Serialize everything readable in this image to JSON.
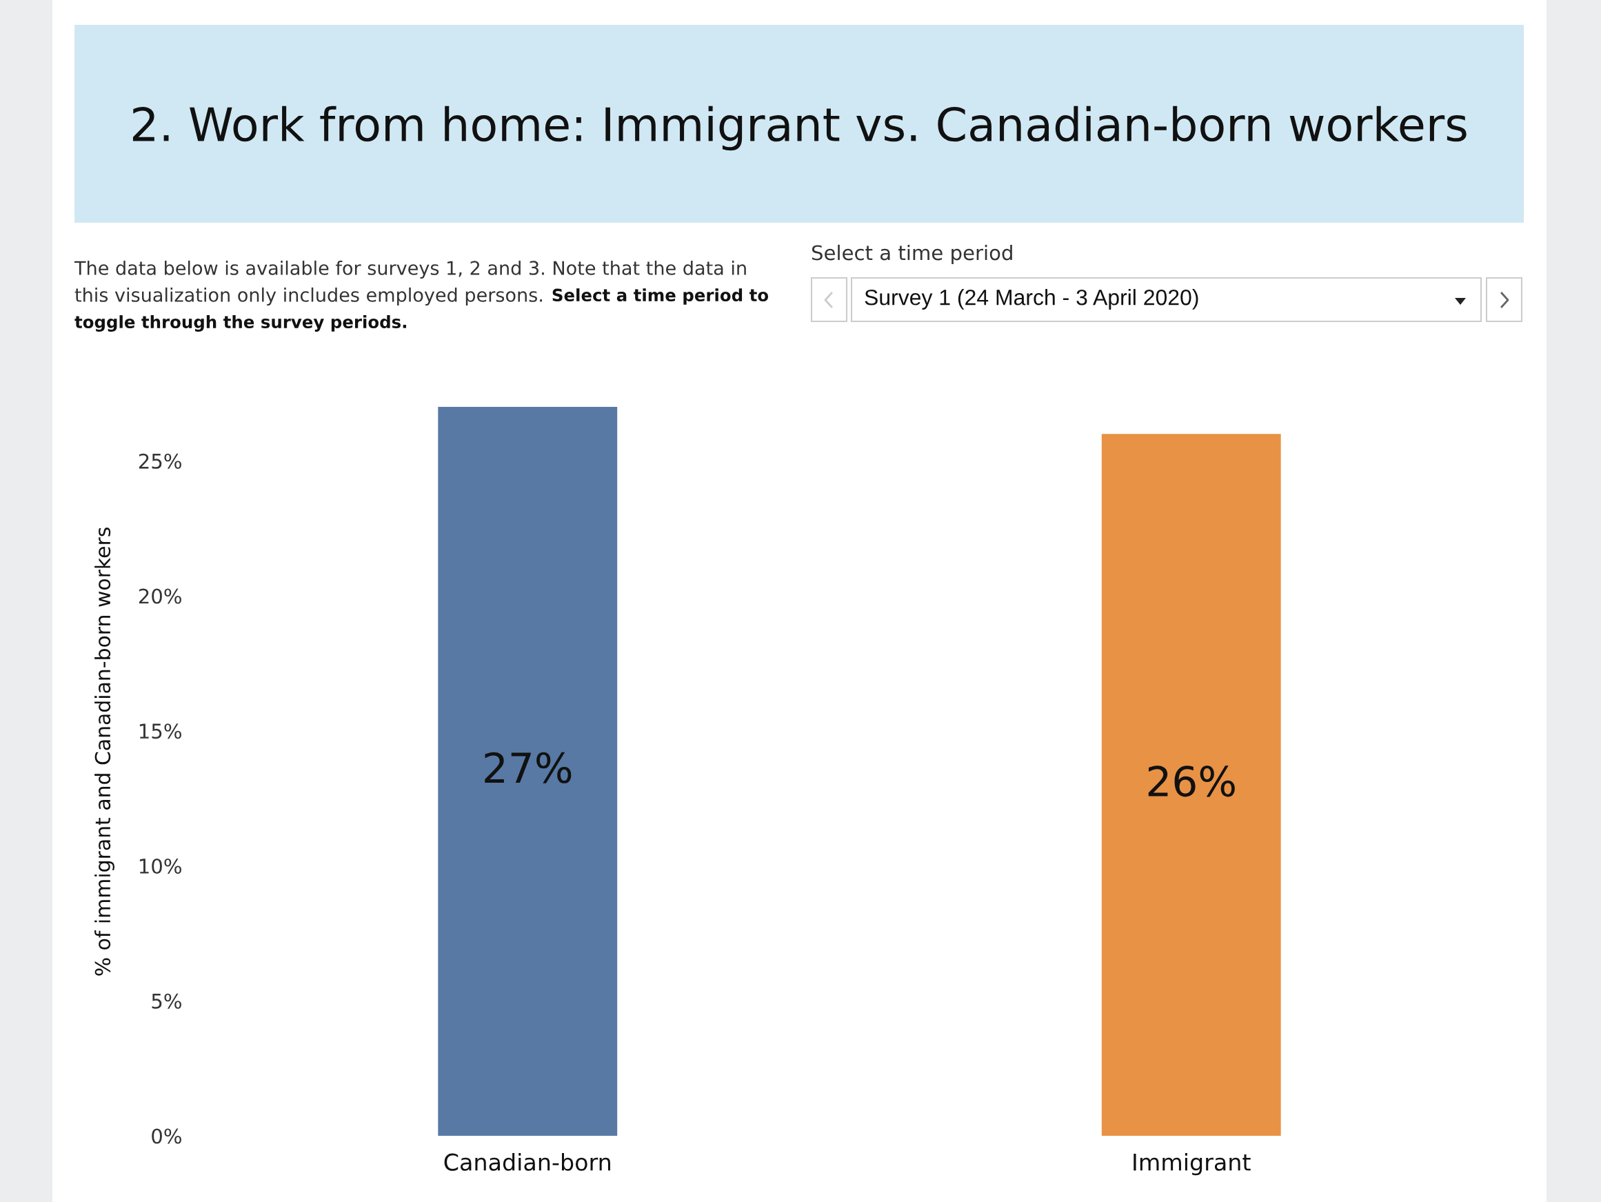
{
  "chart_data": {
    "type": "bar",
    "title": "2. Work from home: Immigrant vs. Canadian-born workers",
    "ylabel": "% of immigrant and Canadian-born workers",
    "categories": [
      "Canadian-born",
      "Immigrant"
    ],
    "values": [
      27,
      26
    ],
    "colors": [
      "#5779a4",
      "#e89246"
    ],
    "value_labels": [
      "27%",
      "26%"
    ],
    "ylim": [
      0,
      27
    ],
    "yticks": [
      {
        "value": 0,
        "label": "0%"
      },
      {
        "value": 5,
        "label": "5%"
      },
      {
        "value": 10,
        "label": "10%"
      },
      {
        "value": 15,
        "label": "15%"
      },
      {
        "value": 20,
        "label": "20%"
      },
      {
        "value": 25,
        "label": "25%"
      }
    ],
    "annotations": [
      "The data below is available for surveys 1, 2 and 3. Note that the data in",
      "this visualization only includes employed persons.",
      "Select a time period to",
      "toggle through the survey periods.",
      "Select a time period",
      "Survey 1 (24 March - 3 April 2020)"
    ]
  }
}
